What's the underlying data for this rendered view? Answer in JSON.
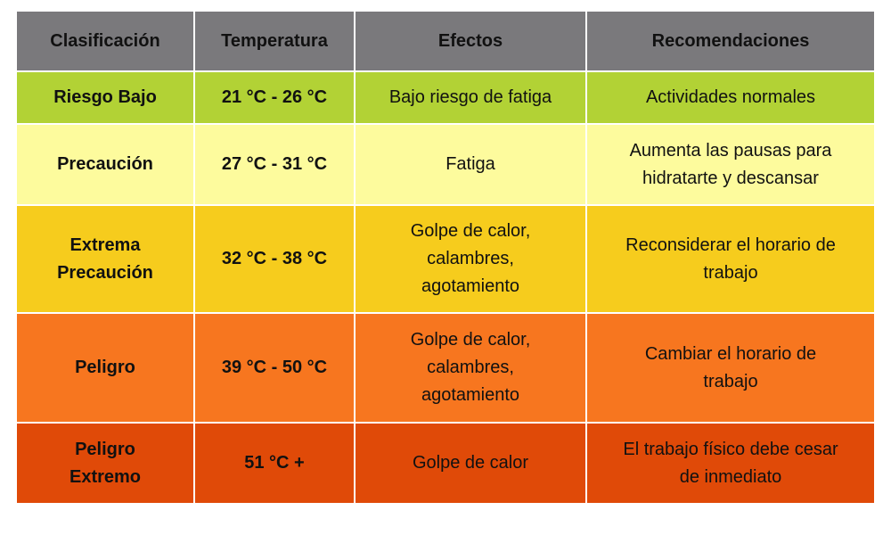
{
  "table": {
    "headers": [
      "Clasificación",
      "Temperatura",
      "Efectos",
      "Recomendaciones"
    ],
    "rows": [
      [
        "Riesgo Bajo",
        "21 °C -  26 °C",
        "Bajo riesgo de fatiga",
        "Actividades normales"
      ],
      [
        "Precaución",
        "27 °C - 31 °C",
        "Fatiga",
        "Aumenta las pausas para\nhidratarte y descansar"
      ],
      [
        "Extrema\nPrecaución",
        "32 °C - 38 °C",
        "Golpe de calor,\ncalambres,\nagotamiento",
        "Reconsiderar el horario de\ntrabajo"
      ],
      [
        "Peligro",
        "39 °C - 50 °C",
        "Golpe de calor,\ncalambres,\nagotamiento",
        "Cambiar el horario de\ntrabajo"
      ],
      [
        "Peligro\nExtremo",
        "51 °C +",
        "Golpe de calor",
        "El trabajo físico debe cesar\nde inmediato"
      ]
    ]
  }
}
